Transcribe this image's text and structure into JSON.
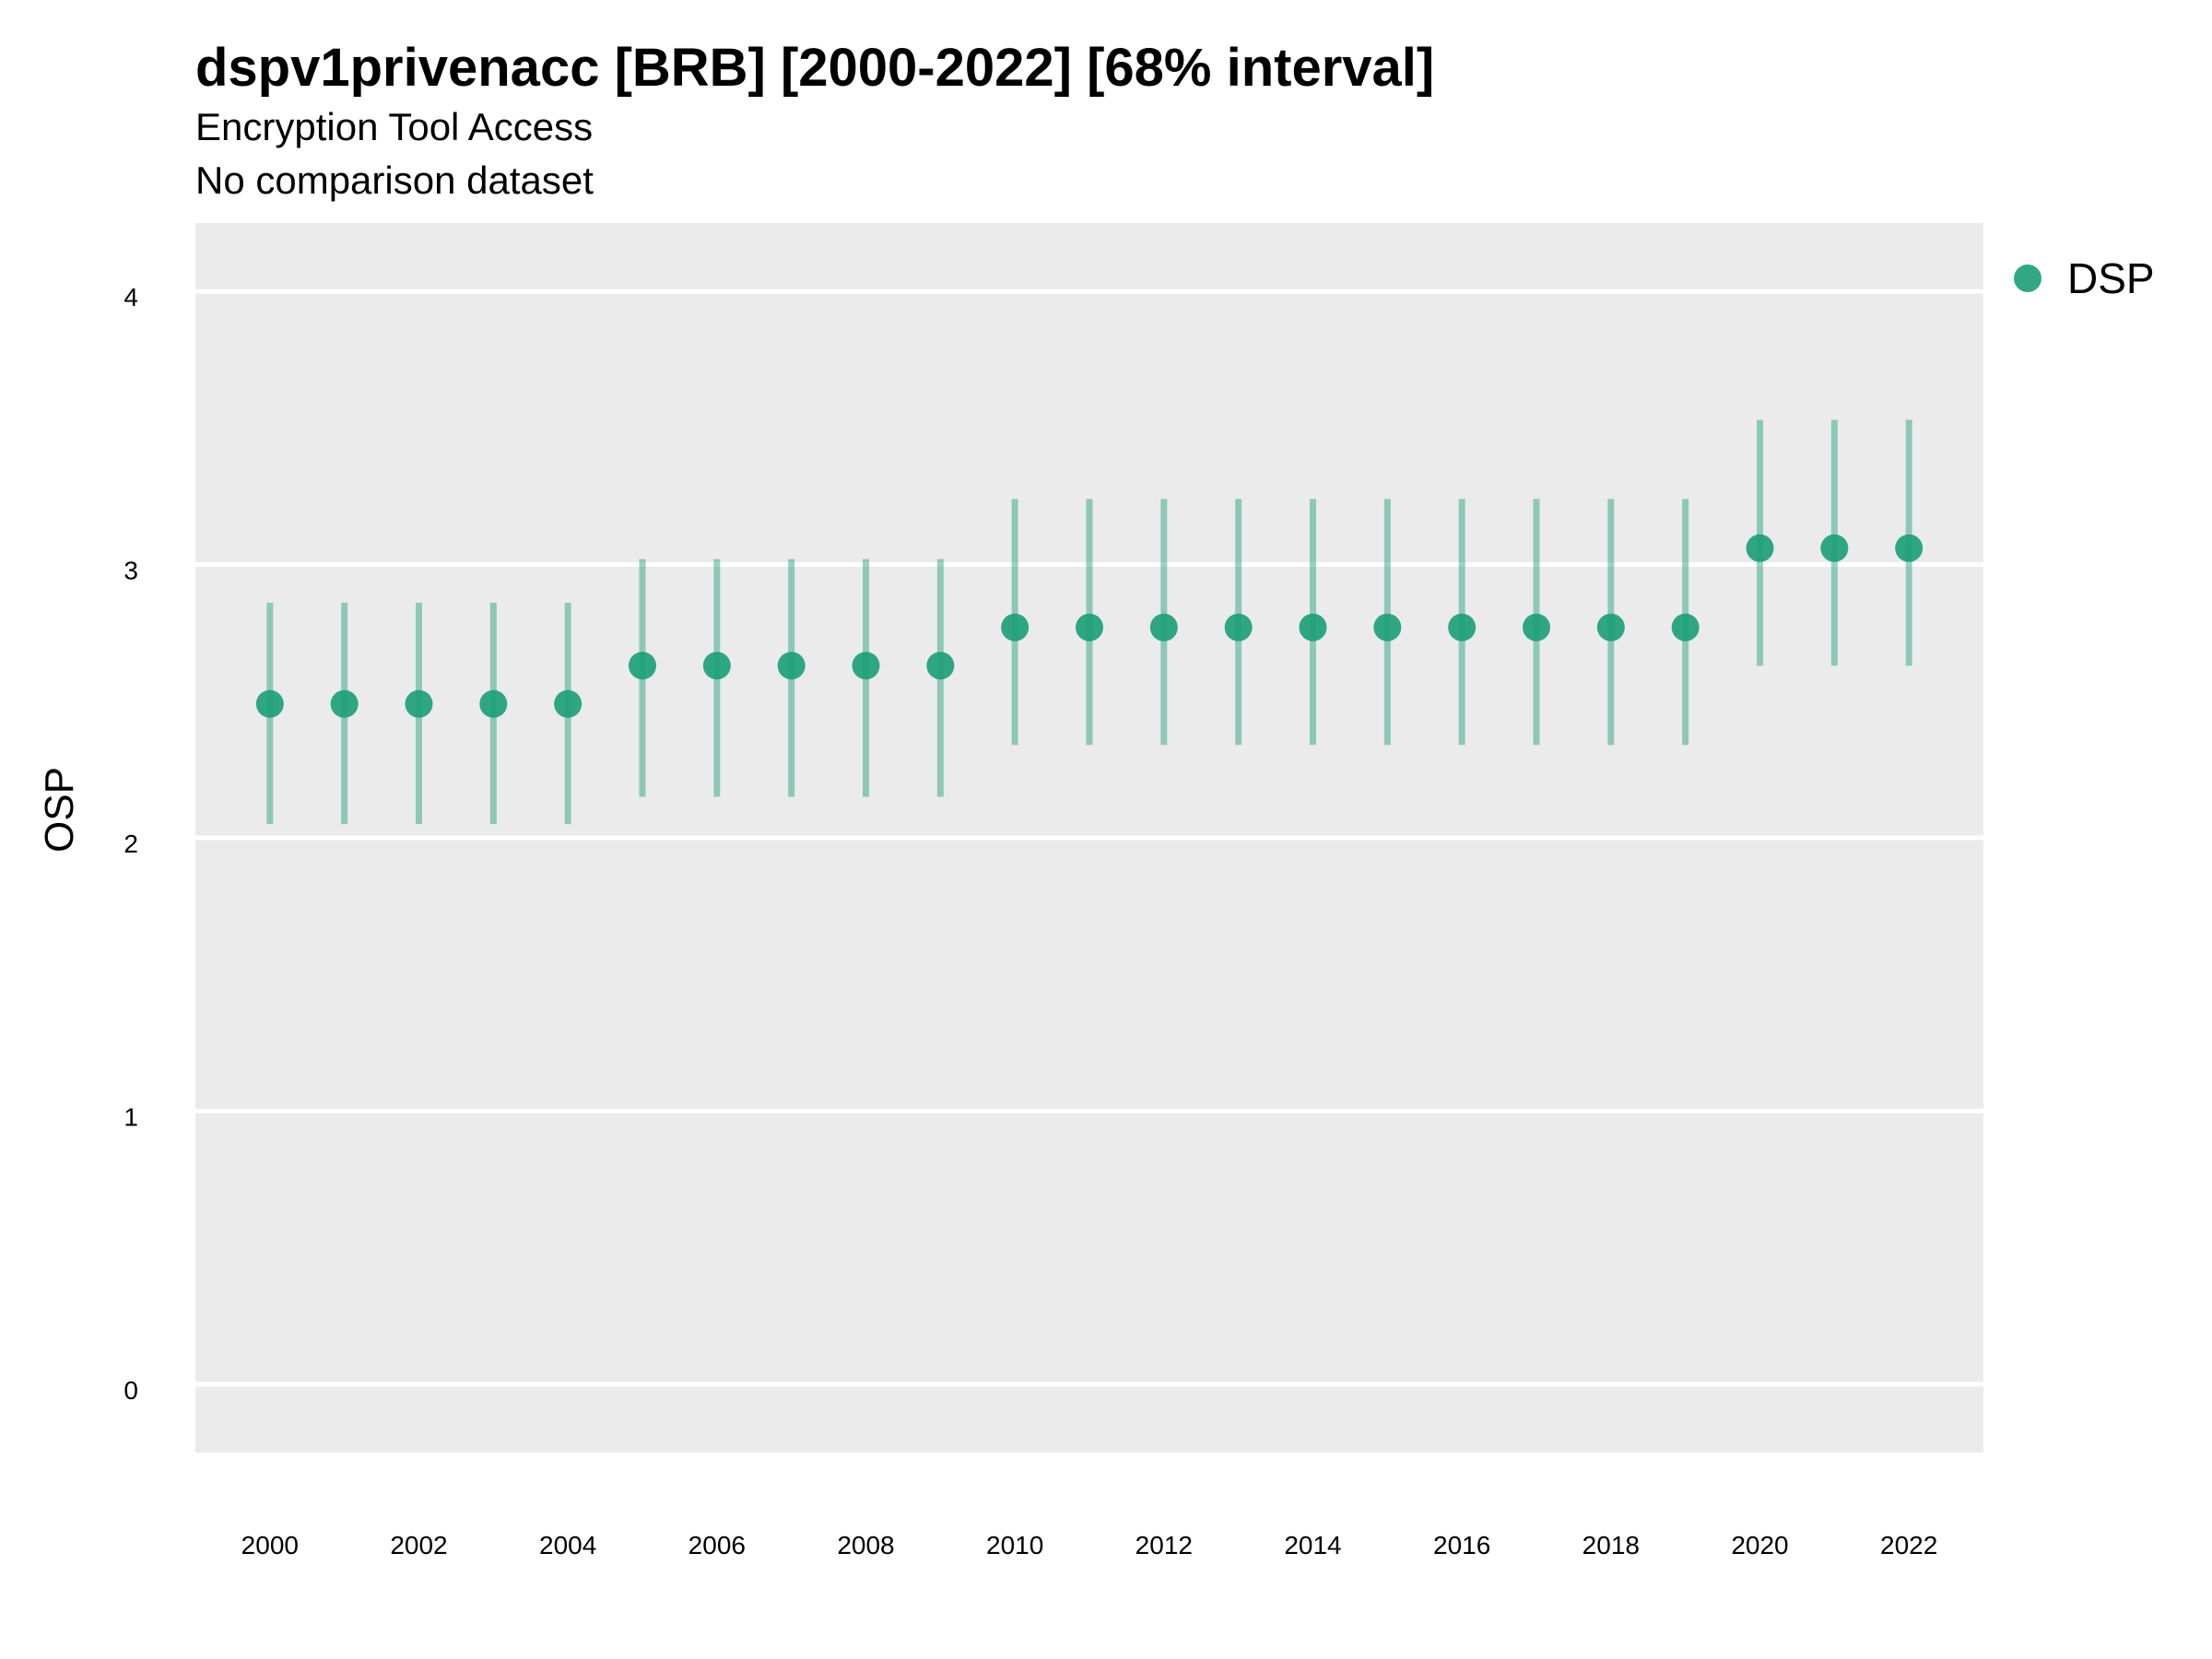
{
  "title": "dspv1privenacc [BRB] [2000-2022] [68% interval]",
  "subtitle_1": "Encryption Tool Access",
  "subtitle_2": "No comparison dataset",
  "colors": {
    "series": "#1b9e77",
    "panel": "#ebebeb",
    "grid": "#ffffff"
  },
  "chart_data": {
    "type": "scatter",
    "title": "dspv1privenacc [BRB] [2000-2022] [68% interval]",
    "subtitle": [
      "Encryption Tool Access",
      "No comparison dataset"
    ],
    "xlabel": "",
    "ylabel": "OSP",
    "xlim": [
      1999,
      2023
    ],
    "ylim": [
      -0.25,
      4.25
    ],
    "x_ticks": [
      2000,
      2002,
      2004,
      2006,
      2008,
      2010,
      2012,
      2014,
      2016,
      2018,
      2020,
      2022
    ],
    "y_ticks": [
      0,
      1,
      2,
      3,
      4
    ],
    "grid": true,
    "legend_position": "right",
    "series": [
      {
        "name": "DSP",
        "x": [
          2000,
          2001,
          2002,
          2003,
          2004,
          2005,
          2006,
          2007,
          2008,
          2009,
          2010,
          2011,
          2012,
          2013,
          2014,
          2015,
          2016,
          2017,
          2018,
          2019,
          2020,
          2021,
          2022
        ],
        "y": [
          2.49,
          2.49,
          2.49,
          2.49,
          2.49,
          2.63,
          2.63,
          2.63,
          2.63,
          2.63,
          2.77,
          2.77,
          2.77,
          2.77,
          2.77,
          2.77,
          2.77,
          2.77,
          2.77,
          2.77,
          3.06,
          3.06,
          3.06
        ],
        "lower": [
          2.05,
          2.05,
          2.05,
          2.05,
          2.05,
          2.15,
          2.15,
          2.15,
          2.15,
          2.15,
          2.34,
          2.34,
          2.34,
          2.34,
          2.34,
          2.34,
          2.34,
          2.34,
          2.34,
          2.34,
          2.63,
          2.63,
          2.63
        ],
        "upper": [
          2.86,
          2.86,
          2.86,
          2.86,
          2.86,
          3.02,
          3.02,
          3.02,
          3.02,
          3.02,
          3.24,
          3.24,
          3.24,
          3.24,
          3.24,
          3.24,
          3.24,
          3.24,
          3.24,
          3.24,
          3.53,
          3.53,
          3.53
        ]
      }
    ]
  }
}
